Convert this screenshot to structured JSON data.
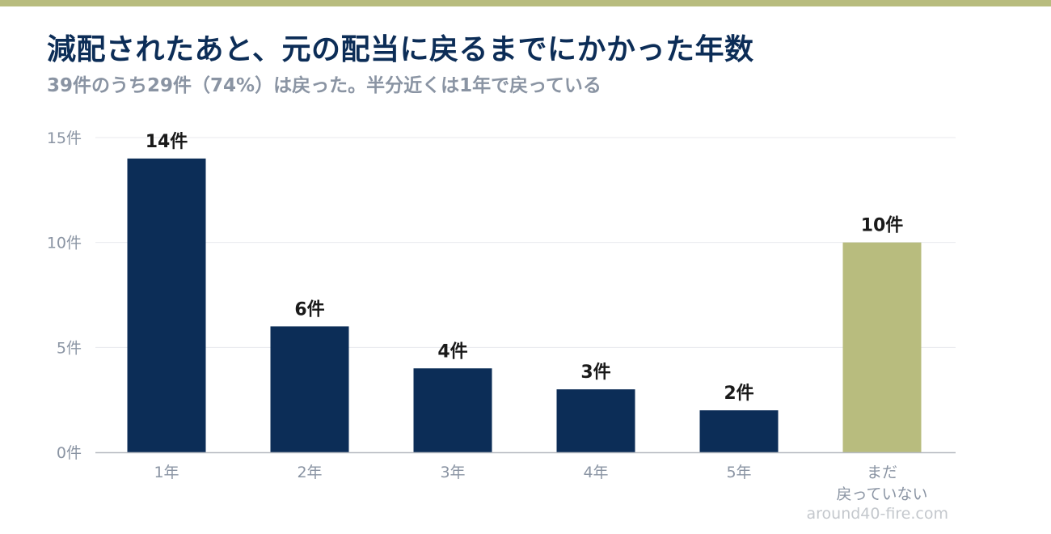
{
  "title": "減配されたあと、元の配当に戻るまでにかかった年数",
  "subtitle": "39件のうち29件（74%）は戻った。半分近くは1年で戻っている",
  "watermark": "around40-fire.com",
  "colors": {
    "bar_primary": "#0c2d57",
    "bar_highlight": "#b8bc7e",
    "top_bar": "#b8bc7e",
    "title": "#0c2d57",
    "subtitle": "#8a94a3"
  },
  "chart_data": {
    "type": "bar",
    "title": "減配されたあと、元の配当に戻るまでにかかった年数",
    "subtitle": "39件のうち29件（74%）は戻った。半分近くは1年で戻っている",
    "categories": [
      "1年",
      "2年",
      "3年",
      "4年",
      "5年",
      "まだ\n戻っていない"
    ],
    "values": [
      14,
      6,
      4,
      3,
      2,
      10
    ],
    "data_labels": [
      "14件",
      "6件",
      "4件",
      "3件",
      "2件",
      "10件"
    ],
    "bar_colors": [
      "#0c2d57",
      "#0c2d57",
      "#0c2d57",
      "#0c2d57",
      "#0c2d57",
      "#b8bc7e"
    ],
    "ylim": [
      0,
      15
    ],
    "yticks": [
      0,
      5,
      10,
      15
    ],
    "ytick_labels": [
      "0件",
      "5件",
      "10件",
      "15件"
    ],
    "xlabel": "",
    "ylabel": "",
    "grid": true,
    "legend": "none"
  }
}
